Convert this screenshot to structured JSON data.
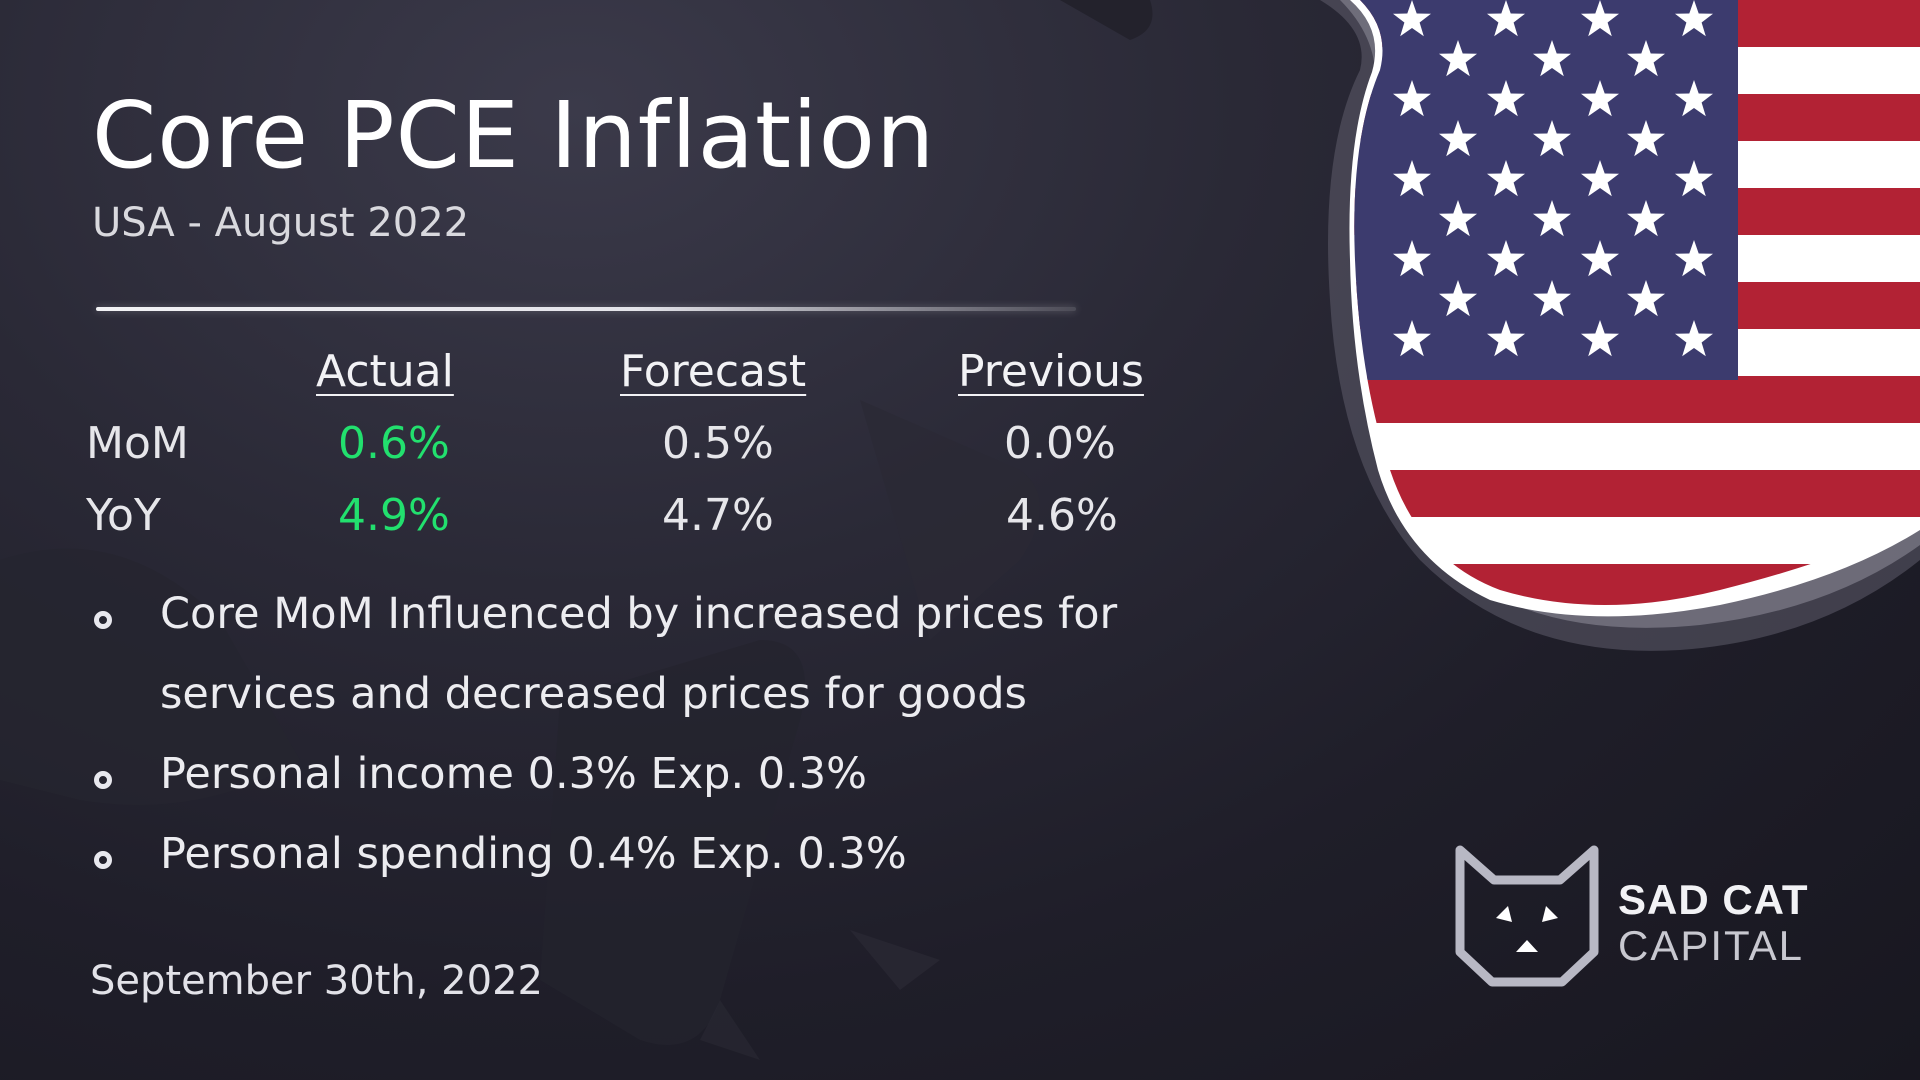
{
  "header": {
    "title": "Core PCE Inflation",
    "subtitle": "USA - August 2022"
  },
  "table": {
    "columns": [
      "Actual ",
      "Forecast",
      "Previous"
    ],
    "rows": [
      {
        "label": "MoM",
        "actual": "0.6%",
        "forecast": "0.5%",
        "previous": "0.0%"
      },
      {
        "label": "YoY",
        "actual": "4.9%",
        "forecast": "4.7%",
        "previous": "4.6%"
      }
    ],
    "actual_color": "#22e06e"
  },
  "notes": [
    "Core MoM Influenced by increased prices for services and decreased prices for goods",
    "Personal income 0.3% Exp. 0.3%",
    "Personal spending 0.4% Exp. 0.3%"
  ],
  "date": "September 30th, 2022",
  "logo": {
    "line1": "SAD CAT",
    "line2": "CAPITAL",
    "icon": "cat-shield-icon"
  },
  "flag": {
    "icon": "usa-flag-shield-icon",
    "red": "#b22234",
    "blue": "#3c3b6e",
    "white": "#ffffff"
  }
}
